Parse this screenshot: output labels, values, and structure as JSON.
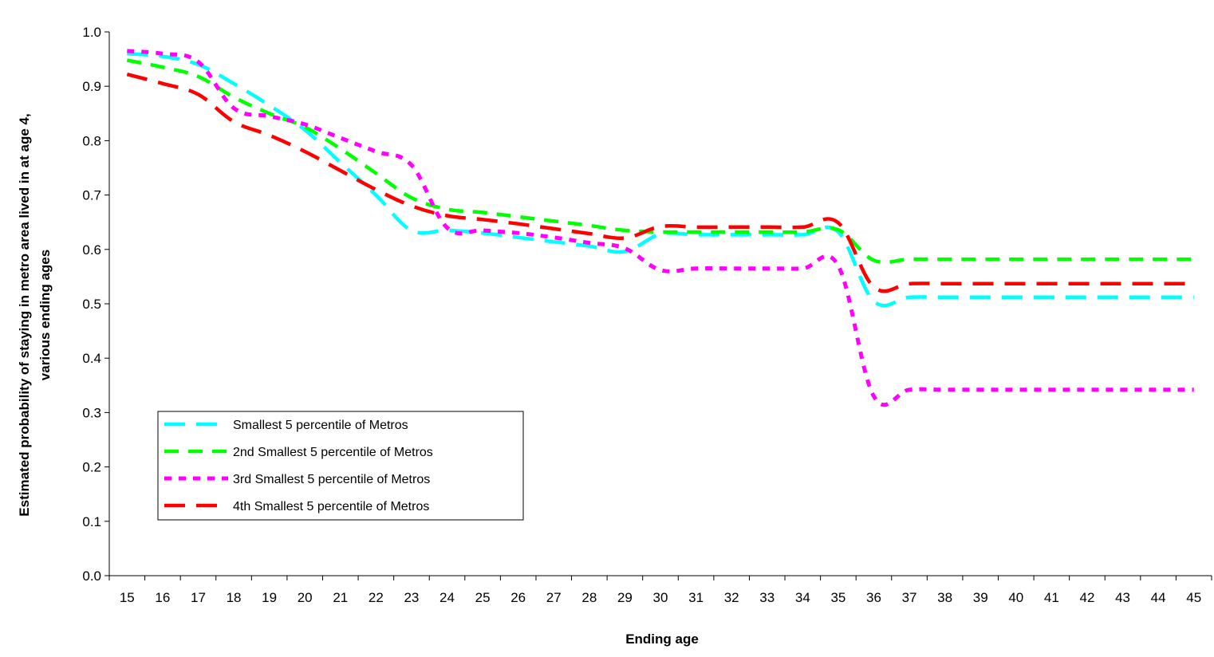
{
  "chart_data": {
    "type": "line",
    "title": "",
    "xlabel": "Ending age",
    "ylabel_lines": [
      "Estimated probability of staying in metro area lived in at age 4,",
      "various ending ages"
    ],
    "ylim": [
      0.0,
      1.0
    ],
    "yticks": [
      "0.0",
      "0.1",
      "0.2",
      "0.3",
      "0.4",
      "0.5",
      "0.6",
      "0.7",
      "0.8",
      "0.9",
      "1.0"
    ],
    "x": [
      15,
      16,
      17,
      18,
      19,
      20,
      21,
      22,
      23,
      24,
      25,
      26,
      27,
      28,
      29,
      30,
      31,
      32,
      33,
      34,
      35,
      36,
      37,
      38,
      39,
      40,
      41,
      42,
      43,
      44,
      45
    ],
    "grid": false,
    "legend_position": "lower-left",
    "series": [
      {
        "name": "Smallest 5 percentile of Metros",
        "color": "#00ffff",
        "dash": "long-dash",
        "values": [
          0.96,
          0.955,
          0.94,
          0.905,
          0.865,
          0.82,
          0.76,
          0.7,
          0.635,
          0.635,
          0.63,
          0.622,
          0.614,
          0.606,
          0.596,
          0.628,
          0.627,
          0.627,
          0.627,
          0.627,
          0.632,
          0.505,
          0.512,
          0.512,
          0.512,
          0.512,
          0.512,
          0.512,
          0.512,
          0.512,
          0.512
        ]
      },
      {
        "name": "2nd Smallest 5 percentile of Metros",
        "color": "#00ff00",
        "dash": "dash",
        "values": [
          0.948,
          0.935,
          0.918,
          0.88,
          0.85,
          0.825,
          0.785,
          0.74,
          0.695,
          0.674,
          0.668,
          0.66,
          0.652,
          0.644,
          0.635,
          0.632,
          0.632,
          0.632,
          0.632,
          0.632,
          0.636,
          0.58,
          0.582,
          0.582,
          0.582,
          0.582,
          0.582,
          0.582,
          0.582,
          0.582,
          0.582
        ]
      },
      {
        "name": "3rd Smallest 5 percentile of Metros",
        "color": "#ff00ff",
        "dash": "dot",
        "values": [
          0.965,
          0.96,
          0.945,
          0.86,
          0.845,
          0.83,
          0.805,
          0.78,
          0.755,
          0.64,
          0.635,
          0.63,
          0.622,
          0.612,
          0.602,
          0.562,
          0.565,
          0.565,
          0.565,
          0.565,
          0.57,
          0.33,
          0.342,
          0.342,
          0.342,
          0.342,
          0.342,
          0.342,
          0.342,
          0.342,
          0.342
        ]
      },
      {
        "name": "4th Smallest 5 percentile of Metros",
        "color": "#ff0000",
        "dash": "long-dash",
        "values": [
          0.922,
          0.905,
          0.885,
          0.835,
          0.81,
          0.78,
          0.745,
          0.71,
          0.68,
          0.662,
          0.655,
          0.647,
          0.638,
          0.629,
          0.621,
          0.642,
          0.641,
          0.641,
          0.641,
          0.641,
          0.649,
          0.531,
          0.537,
          0.537,
          0.537,
          0.537,
          0.537,
          0.537,
          0.537,
          0.537,
          0.537
        ]
      }
    ]
  }
}
